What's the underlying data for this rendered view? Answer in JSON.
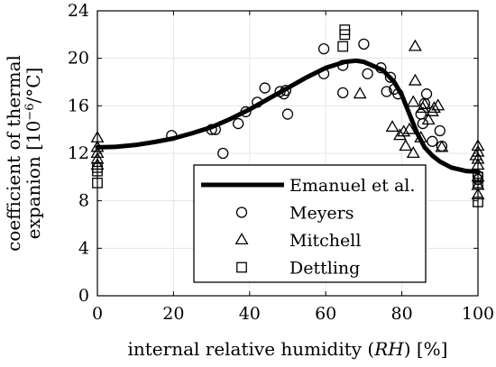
{
  "chart_data": {
    "type": "scatter",
    "xlabel_parts": [
      "internal relative humidity (",
      "RH",
      ") [%]"
    ],
    "ylabel_lines": [
      "coefficient of thermal",
      "expanion [10",
      "−6",
      "/°C]"
    ],
    "xlim": [
      0,
      100
    ],
    "ylim": [
      0,
      24
    ],
    "xticks": [
      0,
      20,
      40,
      60,
      80,
      100
    ],
    "yticks": [
      0,
      4,
      8,
      12,
      16,
      20,
      24
    ],
    "grid": true,
    "legend_position": "lower-right",
    "series": [
      {
        "name": "Emanuel et al.",
        "style": "line",
        "points": [
          [
            0,
            12.5
          ],
          [
            5,
            12.55
          ],
          [
            10,
            12.7
          ],
          [
            15,
            12.95
          ],
          [
            20,
            13.25
          ],
          [
            25,
            13.7
          ],
          [
            30,
            14.2
          ],
          [
            35,
            14.9
          ],
          [
            40,
            15.7
          ],
          [
            45,
            16.6
          ],
          [
            50,
            17.5
          ],
          [
            55,
            18.4
          ],
          [
            60,
            19.2
          ],
          [
            65,
            19.7
          ],
          [
            68,
            19.8
          ],
          [
            70,
            19.7
          ],
          [
            75,
            19.0
          ],
          [
            78,
            18.0
          ],
          [
            80,
            16.9
          ],
          [
            82,
            15.3
          ],
          [
            84,
            13.7
          ],
          [
            86,
            12.5
          ],
          [
            88,
            11.8
          ],
          [
            90,
            11.3
          ],
          [
            93,
            10.8
          ],
          [
            97,
            10.5
          ],
          [
            100,
            10.45
          ]
        ]
      },
      {
        "name": "Meyers",
        "marker": "circle",
        "points": [
          [
            19.5,
            13.5
          ],
          [
            30,
            14
          ],
          [
            31,
            14
          ],
          [
            33,
            12
          ],
          [
            37,
            14.5
          ],
          [
            39,
            15.5
          ],
          [
            42,
            16.3
          ],
          [
            44,
            17.5
          ],
          [
            48,
            17.2
          ],
          [
            49,
            17
          ],
          [
            49.5,
            17.3
          ],
          [
            50,
            15.3
          ],
          [
            59.5,
            20.8
          ],
          [
            59.5,
            18.7
          ],
          [
            64.5,
            19.4
          ],
          [
            64.5,
            17.1
          ],
          [
            70,
            21.2
          ],
          [
            71,
            18.7
          ],
          [
            74.5,
            19.2
          ],
          [
            76,
            17.2
          ],
          [
            77,
            18.4
          ],
          [
            78,
            17.4
          ],
          [
            79,
            17
          ],
          [
            86.5,
            17
          ],
          [
            86,
            16.2
          ],
          [
            85,
            15.3
          ],
          [
            85.5,
            14.5
          ],
          [
            90,
            13.9
          ],
          [
            90.5,
            12.6
          ],
          [
            88,
            13
          ],
          [
            100,
            10.1
          ],
          [
            100,
            9.8
          ]
        ]
      },
      {
        "name": "Mitchell",
        "marker": "triangle",
        "points": [
          [
            0,
            13.3
          ],
          [
            0,
            12.5
          ],
          [
            0,
            12
          ],
          [
            0,
            11.5
          ],
          [
            0,
            11
          ],
          [
            69,
            17
          ],
          [
            77.5,
            14.2
          ],
          [
            79.5,
            13.5
          ],
          [
            80.5,
            13.8
          ],
          [
            81,
            12.6
          ],
          [
            82,
            14
          ],
          [
            83,
            12
          ],
          [
            83.5,
            18.1
          ],
          [
            83.5,
            21
          ],
          [
            85,
            13.3
          ],
          [
            85.5,
            15.8
          ],
          [
            86,
            16.1
          ],
          [
            87,
            14.8
          ],
          [
            88,
            15.5
          ],
          [
            88.5,
            15.8
          ],
          [
            89.5,
            16
          ],
          [
            90.5,
            12.5
          ],
          [
            83,
            16.3
          ],
          [
            100,
            12.6
          ],
          [
            100,
            12.1
          ],
          [
            100,
            11.5
          ],
          [
            100,
            11
          ],
          [
            100,
            10
          ],
          [
            100,
            9.3
          ],
          [
            100,
            8.5
          ],
          [
            99.5,
            11.8
          ]
        ]
      },
      {
        "name": "Dettling",
        "marker": "square",
        "points": [
          [
            0,
            10.8
          ],
          [
            0,
            10.5
          ],
          [
            0,
            9.5
          ],
          [
            65,
            22.4
          ],
          [
            65,
            22
          ],
          [
            64.5,
            21
          ],
          [
            100,
            7.9
          ],
          [
            100,
            9.5
          ],
          [
            100,
            10
          ]
        ]
      }
    ]
  }
}
